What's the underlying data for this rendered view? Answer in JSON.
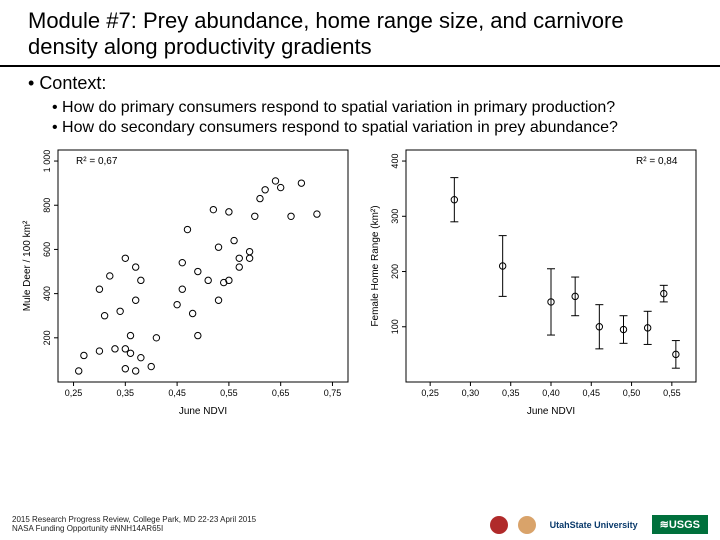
{
  "title": "Module #7: Prey abundance, home range size, and carnivore density along productivity gradients",
  "context_label": "Context:",
  "bullets": [
    "How do primary consumers respond to spatial variation in primary production?",
    "How do secondary consumers respond to spatial variation in prey abundance?"
  ],
  "chart_left": {
    "type": "scatter",
    "r2_label": "R² = 0,67",
    "xlabel": "June NDVI",
    "ylabel": "Mule Deer / 100 km²",
    "xlim": [
      0.22,
      0.78
    ],
    "xticks": [
      0.25,
      0.35,
      0.45,
      0.55,
      0.65,
      0.75
    ],
    "xtick_labels": [
      "0,25",
      "0,35",
      "0,45",
      "0,55",
      "0,65",
      "0,75"
    ],
    "ylim": [
      0,
      1050
    ],
    "yticks": [
      200,
      400,
      600,
      800,
      1000
    ],
    "ytick_labels": [
      "200",
      "400",
      "600",
      "800",
      "1 000"
    ],
    "marker": {
      "shape": "circle",
      "r": 3.2,
      "stroke": "#000000",
      "fill": "none",
      "stroke_width": 1
    },
    "points": [
      [
        0.26,
        50
      ],
      [
        0.27,
        120
      ],
      [
        0.3,
        140
      ],
      [
        0.3,
        420
      ],
      [
        0.31,
        300
      ],
      [
        0.32,
        480
      ],
      [
        0.33,
        150
      ],
      [
        0.34,
        320
      ],
      [
        0.35,
        60
      ],
      [
        0.35,
        150
      ],
      [
        0.35,
        560
      ],
      [
        0.36,
        210
      ],
      [
        0.36,
        130
      ],
      [
        0.37,
        520
      ],
      [
        0.37,
        370
      ],
      [
        0.37,
        50
      ],
      [
        0.38,
        110
      ],
      [
        0.38,
        460
      ],
      [
        0.4,
        70
      ],
      [
        0.41,
        200
      ],
      [
        0.45,
        350
      ],
      [
        0.46,
        540
      ],
      [
        0.46,
        420
      ],
      [
        0.47,
        690
      ],
      [
        0.48,
        310
      ],
      [
        0.49,
        500
      ],
      [
        0.49,
        210
      ],
      [
        0.51,
        460
      ],
      [
        0.52,
        780
      ],
      [
        0.53,
        370
      ],
      [
        0.53,
        610
      ],
      [
        0.54,
        450
      ],
      [
        0.55,
        460
      ],
      [
        0.55,
        770
      ],
      [
        0.56,
        640
      ],
      [
        0.57,
        520
      ],
      [
        0.57,
        560
      ],
      [
        0.59,
        560
      ],
      [
        0.59,
        590
      ],
      [
        0.6,
        750
      ],
      [
        0.61,
        830
      ],
      [
        0.62,
        870
      ],
      [
        0.64,
        910
      ],
      [
        0.65,
        880
      ],
      [
        0.67,
        750
      ],
      [
        0.69,
        900
      ],
      [
        0.72,
        760
      ]
    ],
    "background": "#ffffff",
    "axis_color": "#000000",
    "tick_fontsize": 9,
    "label_fontsize": 10,
    "r2_fontsize": 10
  },
  "chart_right": {
    "type": "errorbar",
    "r2_label": "R² = 0,84",
    "xlabel": "June NDVI",
    "ylabel": "Female Home Range (km²)",
    "xlim": [
      0.22,
      0.58
    ],
    "xticks": [
      0.25,
      0.3,
      0.35,
      0.4,
      0.45,
      0.5,
      0.55
    ],
    "xtick_labels": [
      "0,25",
      "0,30",
      "0,35",
      "0,40",
      "0,45",
      "0,50",
      "0,55"
    ],
    "ylim": [
      0,
      420
    ],
    "yticks": [
      100,
      200,
      300,
      400
    ],
    "ytick_labels": [
      "100",
      "200",
      "300",
      "400"
    ],
    "marker": {
      "shape": "circle",
      "r": 3.2,
      "stroke": "#000000",
      "fill": "none",
      "stroke_width": 1
    },
    "errorbar": {
      "cap": 4,
      "stroke": "#000000",
      "stroke_width": 1
    },
    "points": [
      {
        "x": 0.28,
        "y": 330,
        "err": 40
      },
      {
        "x": 0.34,
        "y": 210,
        "err": 55
      },
      {
        "x": 0.4,
        "y": 145,
        "err": 60
      },
      {
        "x": 0.43,
        "y": 155,
        "err": 35
      },
      {
        "x": 0.46,
        "y": 100,
        "err": 40
      },
      {
        "x": 0.49,
        "y": 95,
        "err": 25
      },
      {
        "x": 0.52,
        "y": 98,
        "err": 30
      },
      {
        "x": 0.54,
        "y": 160,
        "err": 15
      },
      {
        "x": 0.555,
        "y": 50,
        "err": 25
      }
    ],
    "background": "#ffffff",
    "axis_color": "#000000",
    "tick_fontsize": 9,
    "label_fontsize": 10,
    "r2_fontsize": 10
  },
  "footer": {
    "line1": "2015 Research Progress Review, College Park, MD 22-23 April 2015",
    "line2": "NASA Funding Opportunity #NNH14AR65I"
  },
  "logos": {
    "usu": "UtahState University",
    "usgs": "≋USGS"
  }
}
